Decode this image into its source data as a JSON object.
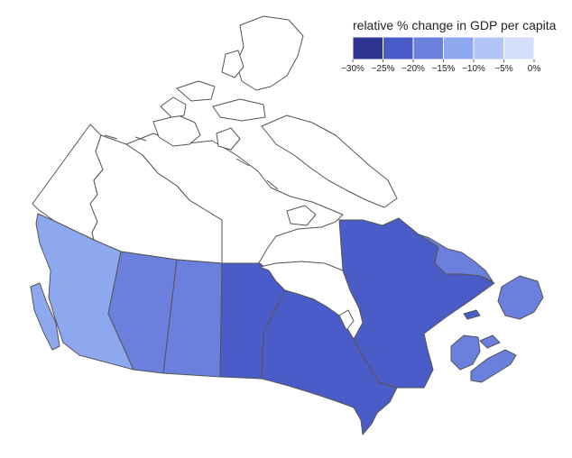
{
  "legend": {
    "title": "relative % change in GDP per capita",
    "bins": [
      {
        "color": "#2e3591"
      },
      {
        "color": "#4a5cc7"
      },
      {
        "color": "#6b7fdd"
      },
      {
        "color": "#8ea8ef"
      },
      {
        "color": "#b0c4f6"
      },
      {
        "color": "#d4dffb"
      }
    ],
    "ticks": [
      "−30%",
      "−25%",
      "−20%",
      "−15%",
      "−10%",
      "−5%",
      "0%"
    ]
  },
  "regions": [
    {
      "id": "bc",
      "color": "#8ea8ef"
    },
    {
      "id": "alberta",
      "color": "#6b7fdd"
    },
    {
      "id": "saskatchewan",
      "color": "#6b7fdd"
    },
    {
      "id": "manitoba",
      "color": "#4a5cc7"
    },
    {
      "id": "ontario",
      "color": "#4a5cc7"
    },
    {
      "id": "quebec",
      "color": "#4a5cc7"
    },
    {
      "id": "labrador",
      "color": "#6b7fdd"
    },
    {
      "id": "newfoundland",
      "color": "#6b7fdd"
    },
    {
      "id": "new-brunswick",
      "color": "#6b7fdd"
    },
    {
      "id": "nova-scotia",
      "color": "#6b7fdd"
    },
    {
      "id": "pei",
      "color": "#6b7fdd"
    },
    {
      "id": "vancouver-island",
      "color": "#8ea8ef"
    },
    {
      "id": "yukon",
      "color": "#ffffff"
    },
    {
      "id": "northwest-territories",
      "color": "#ffffff"
    },
    {
      "id": "nunavut",
      "color": "#ffffff"
    }
  ]
}
